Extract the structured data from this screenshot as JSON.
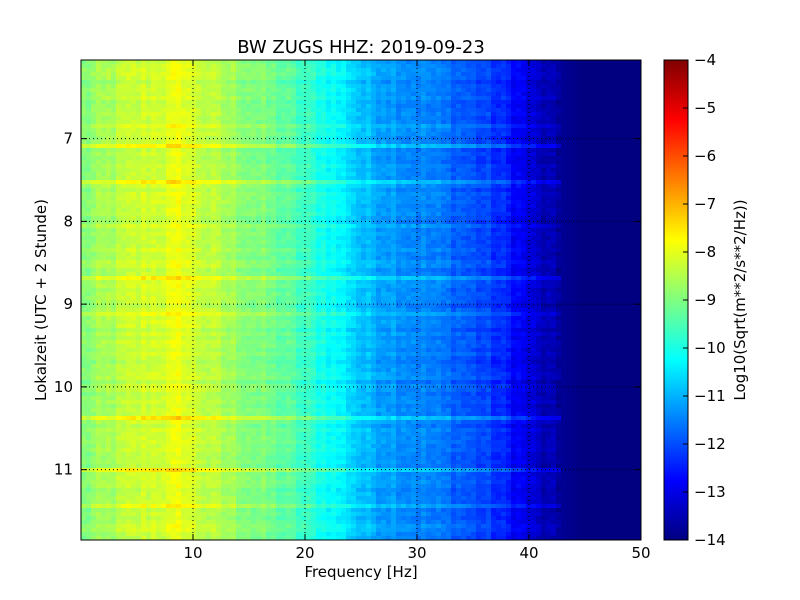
{
  "chart_data": {
    "type": "heatmap",
    "title": "BW ZUGS HHZ: 2019-09-23",
    "xlabel": "Frequency [Hz]",
    "ylabel": "Lokalzeit (UTC + 2 Stunde)",
    "xlim": [
      0,
      50
    ],
    "ylim": [
      6.05,
      11.85
    ],
    "y_inverted": true,
    "xticks": [
      10,
      20,
      30,
      40,
      50
    ],
    "yticks": [
      7,
      8,
      9,
      10,
      11
    ],
    "grid": true,
    "colormap": "jet",
    "colorbar": {
      "label": "Log10(Sqrt(m**2/s**2/Hz))",
      "range": [
        -14,
        -4
      ],
      "ticks": [
        -14,
        -13,
        -12,
        -11,
        -10,
        -9,
        -8,
        -7,
        -6,
        -5,
        -4
      ]
    },
    "frequency_profile": {
      "frequency_hz": [
        0,
        2,
        4,
        6,
        8,
        9,
        10,
        12,
        15,
        18,
        20,
        22,
        24,
        25,
        27,
        30,
        33,
        36,
        38,
        39,
        40,
        41,
        42,
        43,
        45,
        50
      ],
      "log10_amplitude": [
        -9.0,
        -8.7,
        -8.4,
        -8.2,
        -8.1,
        -7.9,
        -8.2,
        -8.5,
        -8.9,
        -9.3,
        -9.7,
        -10.1,
        -10.5,
        -10.9,
        -11.1,
        -11.4,
        -11.7,
        -12.1,
        -12.5,
        -12.8,
        -13.1,
        -13.4,
        -13.6,
        -13.8,
        -14.0,
        -14.0
      ]
    }
  }
}
